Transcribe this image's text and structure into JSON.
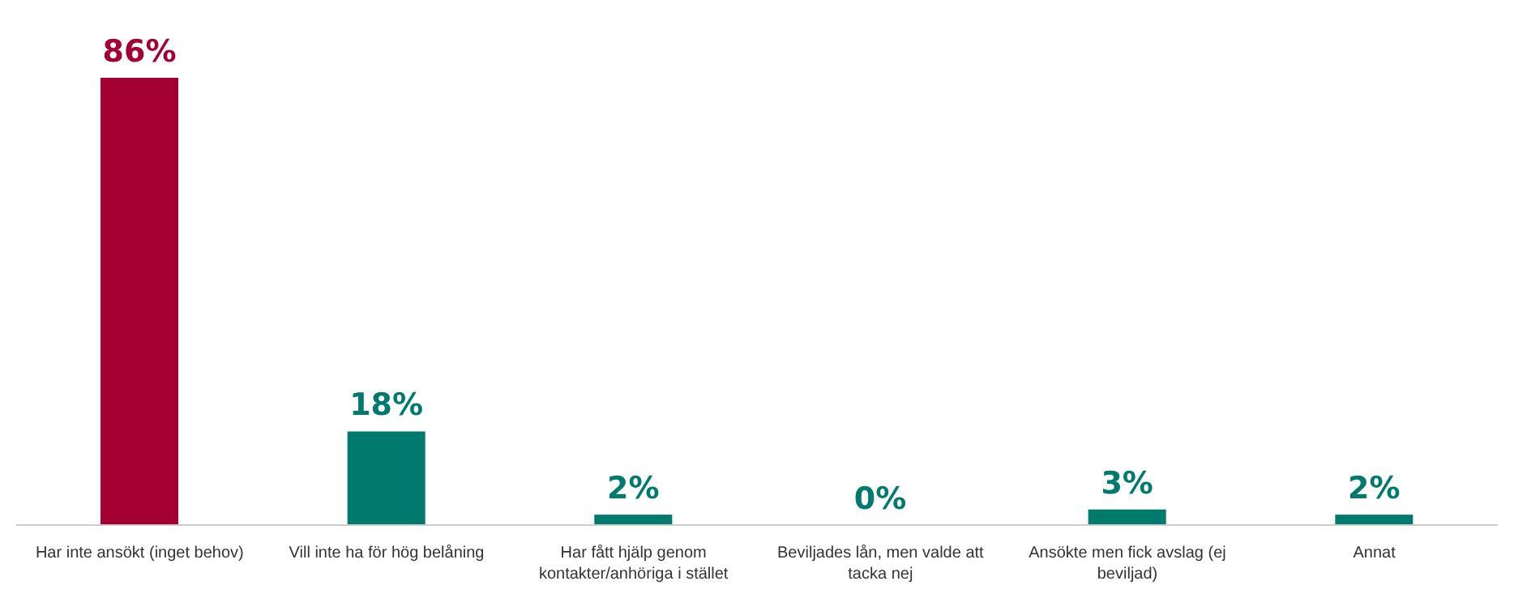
{
  "chart_data": {
    "type": "bar",
    "categories": [
      "Har inte ansökt (inget behov)",
      "Vill inte ha för hög belåning",
      "Har fått hjälp genom kontakter/anhöriga i stället",
      "Beviljades lån, men valde att tacka nej",
      "Ansökte men fick avslag (ej beviljad)",
      "Annat"
    ],
    "values": [
      86,
      18,
      2,
      0,
      3,
      2
    ],
    "colors": [
      "#a50034",
      "#007a6c",
      "#007a6c",
      "#007a6c",
      "#007a6c",
      "#007a6c"
    ],
    "value_labels": [
      "86%",
      "18%",
      "2%",
      "0%",
      "3%",
      "2%"
    ],
    "grid": false
  }
}
